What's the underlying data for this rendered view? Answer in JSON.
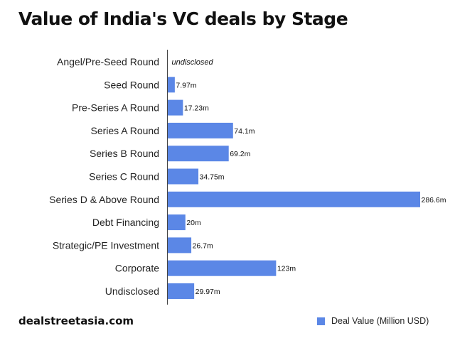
{
  "title": "Value of India's VC deals by Stage",
  "brand": "dealstreetasia.com",
  "colors": {
    "bar": "#5b87e6",
    "axis": "#444444"
  },
  "chart_data": {
    "type": "bar",
    "orientation": "horizontal",
    "title": "Value of India's VC deals by Stage",
    "xlabel": "",
    "ylabel": "",
    "xlim": [
      0,
      286.6
    ],
    "grid": false,
    "legend_position": "bottom-right",
    "categories": [
      "Angel/Pre-Seed Round",
      "Seed Round",
      "Pre-Series A Round",
      "Series A Round",
      "Series B Round",
      "Series C Round",
      "Series D & Above Round",
      "Debt Financing",
      "Strategic/PE Investment",
      "Corporate",
      "Undisclosed"
    ],
    "series": [
      {
        "name": "Deal Value (Million USD)",
        "values": [
          null,
          7.97,
          17.23,
          74.1,
          69.2,
          34.75,
          286.6,
          20,
          26.7,
          123,
          29.97
        ],
        "labels": [
          "undisclosed",
          "7.97m",
          "17.23m",
          "74.1m",
          "69.2m",
          "34.75m",
          "286.6m",
          "20m",
          "26.7m",
          "123m",
          "29.97m"
        ]
      }
    ]
  }
}
